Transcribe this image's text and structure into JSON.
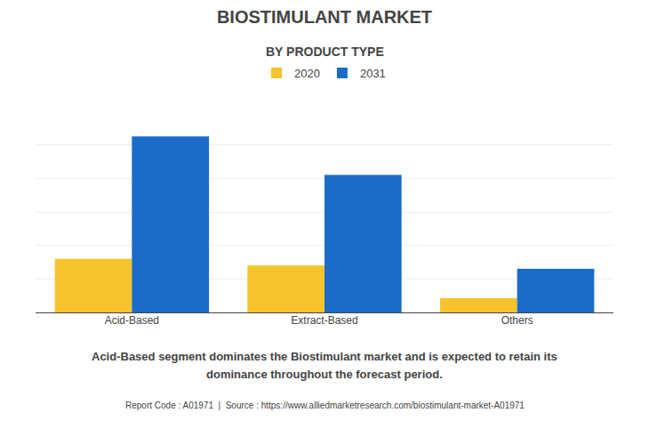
{
  "chart_data": {
    "type": "bar",
    "title": "BIOSTIMULANT MARKET",
    "subtitle": "BY PRODUCT TYPE",
    "categories": [
      "Acid-Based",
      "Extract-Based",
      "Others"
    ],
    "series": [
      {
        "name": "2020",
        "color": "#F5C42C",
        "values": [
          3.2,
          2.8,
          0.85
        ]
      },
      {
        "name": "2031",
        "color": "#1A6CC8",
        "values": [
          10.5,
          8.2,
          2.6
        ]
      }
    ],
    "ylim": [
      0,
      12
    ],
    "yticks": [
      0,
      2,
      4,
      6,
      8,
      10,
      12
    ],
    "grid": true,
    "tick_labels": "x",
    "legend": "top",
    "annotations": [
      "Acid-Based segment dominates the Biostimulant market and is expected to retain its",
      "dominance throughout the forecast period."
    ],
    "footer": "Report Code : A01971  |  Source : https://www.alliedmarketresearch.com/biostimulant-market-A01971"
  }
}
